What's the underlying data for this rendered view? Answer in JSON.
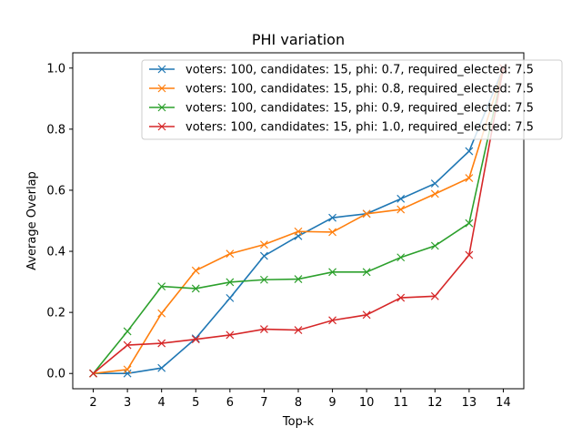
{
  "chart_data": {
    "type": "line",
    "title": "PHI variation",
    "xlabel": "Top-k",
    "ylabel": "Average Overlap",
    "x": [
      2,
      3,
      4,
      5,
      6,
      7,
      8,
      9,
      10,
      11,
      12,
      13,
      14
    ],
    "xlim": [
      1.4,
      14.6
    ],
    "ylim": [
      -0.05,
      1.05
    ],
    "xticks": [
      "2",
      "3",
      "4",
      "5",
      "6",
      "7",
      "8",
      "9",
      "10",
      "11",
      "12",
      "13",
      "14"
    ],
    "yticks": [
      "0.0",
      "0.2",
      "0.4",
      "0.6",
      "0.8",
      "1.0"
    ],
    "ytick_values": [
      0.0,
      0.2,
      0.4,
      0.6,
      0.8,
      1.0
    ],
    "grid": false,
    "legend_position": "top-right",
    "marker": "x",
    "series": [
      {
        "name": "voters: 100, candidates: 15, phi: 0.7, required_elected: 7.5",
        "color": "#1f77b4",
        "values": [
          0.0,
          0.0,
          0.018,
          0.115,
          0.247,
          0.385,
          0.45,
          0.51,
          0.523,
          0.572,
          0.622,
          0.728,
          1.0
        ]
      },
      {
        "name": "voters: 100, candidates: 15, phi: 0.8, required_elected: 7.5",
        "color": "#ff7f0e",
        "values": [
          0.0,
          0.013,
          0.197,
          0.337,
          0.392,
          0.422,
          0.465,
          0.463,
          0.523,
          0.537,
          0.588,
          0.64,
          1.0
        ]
      },
      {
        "name": "voters: 100, candidates: 15, phi: 0.9, required_elected: 7.5",
        "color": "#2ca02c",
        "values": [
          0.0,
          0.138,
          0.285,
          0.278,
          0.299,
          0.307,
          0.309,
          0.332,
          0.332,
          0.38,
          0.418,
          0.492,
          1.0
        ]
      },
      {
        "name": "voters: 100, candidates: 15, phi: 1.0, required_elected: 7.5",
        "color": "#d62728",
        "values": [
          0.0,
          0.093,
          0.099,
          0.112,
          0.126,
          0.145,
          0.142,
          0.174,
          0.192,
          0.248,
          0.253,
          0.388,
          1.0
        ]
      }
    ]
  }
}
